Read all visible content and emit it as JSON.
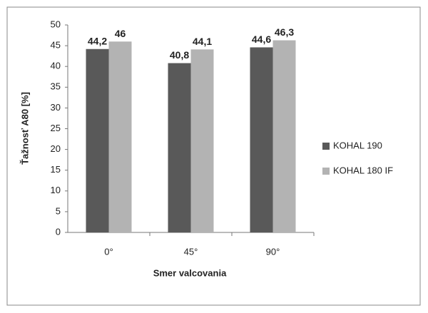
{
  "chart_data": {
    "type": "bar",
    "categories": [
      "0°",
      "45°",
      "90°"
    ],
    "series": [
      {
        "name": "KOHAL 190",
        "color": "#595959",
        "values": [
          44.2,
          40.8,
          44.6
        ],
        "value_labels": [
          "44,2",
          "40,8",
          "44,6"
        ]
      },
      {
        "name": "KOHAL 180 IF",
        "color": "#b3b3b3",
        "values": [
          46,
          44.1,
          46.3
        ],
        "value_labels": [
          "46",
          "44,1",
          "46,3"
        ]
      }
    ],
    "ylim": [
      0,
      50
    ],
    "yticks": [
      0,
      5,
      10,
      15,
      20,
      25,
      30,
      35,
      40,
      45,
      50
    ],
    "ylabel": "Ťažnosť A80 [%]",
    "xlabel": "Smer valcovania",
    "grid": false,
    "legend": "right"
  }
}
